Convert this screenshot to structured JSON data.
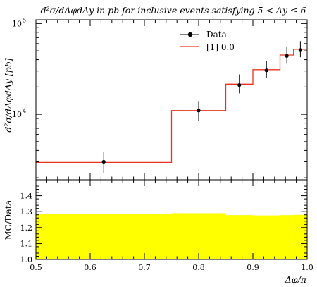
{
  "chart_data": [
    {
      "type": "step",
      "title": "d²σ/dΔφdΔy in pb for inclusive events satisfying 5 < Δy ≤ 6",
      "ylabel": "d²σ/dΔφdΔy [pb]",
      "xlabel": "",
      "yscale": "log",
      "xlim": [
        0.5,
        1.0
      ],
      "ylim": [
        1900,
        110000
      ],
      "yticks": [
        {
          "value": 10000,
          "base": "10",
          "exp": "4"
        },
        {
          "value": 100000,
          "base": "10",
          "exp": "5"
        }
      ],
      "legend": {
        "placement": "top-right",
        "entries": [
          {
            "label": "Data",
            "kind": "marker"
          },
          {
            "label": "[1] 0.0",
            "kind": "line",
            "color": "#e8341c"
          }
        ]
      },
      "series": [
        {
          "name": "Data",
          "points": [
            {
              "x": 0.625,
              "y": 3000,
              "ylo": 2250,
              "yhi": 3850
            },
            {
              "x": 0.8,
              "y": 11000,
              "ylo": 8500,
              "yhi": 14000
            },
            {
              "x": 0.875,
              "y": 21000,
              "ylo": 17000,
              "yhi": 27500
            },
            {
              "x": 0.925,
              "y": 30500,
              "ylo": 25000,
              "yhi": 38500
            },
            {
              "x": 0.9625,
              "y": 44000,
              "ylo": 36000,
              "yhi": 56000
            },
            {
              "x": 0.9875,
              "y": 51000,
              "ylo": 42500,
              "yhi": 64000
            }
          ]
        },
        {
          "name": "[1] 0.0",
          "color": "#e8341c",
          "bins": [
            {
              "x0": 0.5,
              "x1": 0.75,
              "y": 2950
            },
            {
              "x0": 0.75,
              "x1": 0.85,
              "y": 11000
            },
            {
              "x0": 0.85,
              "x1": 0.9,
              "y": 21500
            },
            {
              "x0": 0.9,
              "x1": 0.95,
              "y": 31000
            },
            {
              "x0": 0.95,
              "x1": 0.975,
              "y": 45000
            },
            {
              "x0": 0.975,
              "x1": 1.0,
              "y": 52000
            }
          ]
        }
      ]
    },
    {
      "type": "area",
      "ylabel": "MC/Data",
      "xlabel": "Δφ/π",
      "xlim": [
        0.5,
        1.0
      ],
      "ylim": [
        1.0,
        1.5
      ],
      "xticks": [
        "0.5",
        "0.6",
        "0.7",
        "0.8",
        "0.9",
        "1.0"
      ],
      "xtick_values": [
        0.5,
        0.6,
        0.7,
        0.8,
        0.9,
        1.0
      ],
      "yticks": [
        "1.0",
        "1.1",
        "1.2",
        "1.3",
        "1.4"
      ],
      "ytick_values": [
        1.0,
        1.1,
        1.2,
        1.3,
        1.4
      ],
      "band_color": "#ffff00",
      "band_bins": [
        {
          "x0": 0.5,
          "x1": 0.75,
          "lo": 1.0,
          "hi": 1.283
        },
        {
          "x0": 0.75,
          "x1": 0.85,
          "lo": 1.0,
          "hi": 1.29
        },
        {
          "x0": 0.85,
          "x1": 0.9,
          "lo": 1.0,
          "hi": 1.278
        },
        {
          "x0": 0.9,
          "x1": 0.95,
          "lo": 1.0,
          "hi": 1.276
        },
        {
          "x0": 0.95,
          "x1": 0.975,
          "lo": 1.0,
          "hi": 1.278
        },
        {
          "x0": 0.975,
          "x1": 1.0,
          "lo": 1.0,
          "hi": 1.28
        }
      ]
    }
  ]
}
